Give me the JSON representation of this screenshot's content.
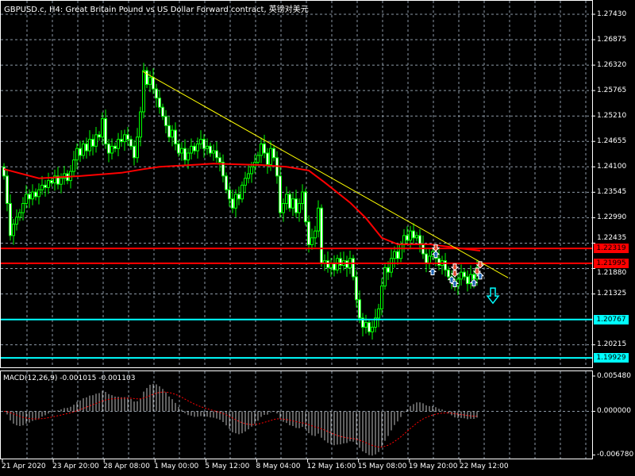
{
  "window": {
    "title": "GBPUSD.c, H4:  Great Britain Pound vs US Dollar Forward contract, 英镑对美元"
  },
  "colors": {
    "background": "#000000",
    "bull_candle": "#00ff00",
    "grid": "#8d99a6",
    "moving_average": "#ff0000",
    "trend_line": "#ffff00",
    "support_lines": "#00ffff",
    "resistance_lines": "#ff0000",
    "macd_histogram": "#c0c0c0",
    "macd_signal": "#ff0000",
    "buy_arrow": "#1e64b4",
    "sell_arrow": "#e0462a"
  },
  "chart_data": {
    "type": "candlestick",
    "symbol": "GBPUSD.c",
    "timeframe": "H4",
    "price_axis": {
      "ticks": [
        "1.27430",
        "1.26875",
        "1.26320",
        "1.25765",
        "1.25210",
        "1.24655",
        "1.24100",
        "1.23545",
        "1.22990",
        "1.22435",
        "1.21880",
        "1.21325",
        "1.20215"
      ],
      "range": [
        1.1975,
        1.2775
      ]
    },
    "time_axis": {
      "ticks": [
        "21 Apr 2020",
        "23 Apr 20:00",
        "28 Apr 08:00",
        "1 May 00:00",
        "5 May 12:00",
        "8 May 04:00",
        "12 May 16:00",
        "15 May 08:00",
        "19 May 20:00",
        "22 May 12:00"
      ]
    },
    "closes": [
      1.239,
      1.233,
      1.226,
      1.2285,
      1.23,
      1.231,
      1.233,
      1.235,
      1.234,
      1.2355,
      1.2345,
      1.236,
      1.237,
      1.2365,
      1.238,
      1.2375,
      1.239,
      1.2372,
      1.2385,
      1.2395,
      1.238,
      1.24,
      1.2425,
      1.245,
      1.2435,
      1.246,
      1.2445,
      1.247,
      1.2455,
      1.248,
      1.2475,
      1.2515,
      1.246,
      1.244,
      1.2455,
      1.245,
      1.247,
      1.2465,
      1.248,
      1.247,
      1.2455,
      1.243,
      1.2475,
      1.253,
      1.262,
      1.259,
      1.2605,
      1.258,
      1.256,
      1.254,
      1.252,
      1.25,
      1.2475,
      1.249,
      1.246,
      1.244,
      1.245,
      1.2425,
      1.244,
      1.2455,
      1.2445,
      1.246,
      1.247,
      1.245,
      1.2455,
      1.244,
      1.2445,
      1.243,
      1.242,
      1.239,
      1.236,
      1.234,
      1.232,
      1.235,
      1.234,
      1.237,
      1.2385,
      1.2395,
      1.241,
      1.242,
      1.2435,
      1.246,
      1.244,
      1.2415,
      1.245,
      1.243,
      1.239,
      1.231,
      1.233,
      1.235,
      1.232,
      1.234,
      1.231,
      1.233,
      1.2355,
      1.229,
      1.224,
      1.2255,
      1.227,
      1.232,
      1.22,
      1.2205,
      1.219,
      1.22,
      1.2185,
      1.221,
      1.2195,
      1.2205,
      1.219,
      1.221,
      1.217,
      1.212,
      1.208,
      1.206,
      1.207,
      1.205,
      1.206,
      1.208,
      1.21,
      1.215,
      1.219,
      1.218,
      1.221,
      1.2225,
      1.221,
      1.224,
      1.226,
      1.225,
      1.227,
      1.2255,
      1.226,
      1.224,
      1.222,
      1.22,
      1.2215,
      1.2225,
      1.221,
      1.2195,
      1.2205,
      1.2185,
      1.217,
      1.216,
      1.215,
      1.2165,
      1.218,
      1.217,
      1.2155,
      1.2175,
      1.2165,
      1.219
    ],
    "moving_average": [
      [
        0,
        1.2405
      ],
      [
        11,
        1.2385
      ],
      [
        24,
        1.239
      ],
      [
        37,
        1.2397
      ],
      [
        44,
        1.2405
      ],
      [
        49,
        1.241
      ],
      [
        66,
        1.2417
      ],
      [
        81,
        1.2414
      ],
      [
        89,
        1.241
      ],
      [
        96,
        1.2402
      ],
      [
        101,
        1.2376
      ],
      [
        109,
        1.2332
      ],
      [
        114,
        1.2298
      ],
      [
        119,
        1.2255
      ],
      [
        124,
        1.2241
      ],
      [
        134,
        1.2241
      ],
      [
        144,
        1.2232
      ],
      [
        150,
        1.2227
      ]
    ],
    "trend_line": [
      [
        43.75,
        1.2618
      ],
      [
        158.75,
        1.2168
      ]
    ],
    "horizontal_lines": [
      {
        "price": "1.22319",
        "color": "#ff0000"
      },
      {
        "price": "1.21995",
        "color": "#ff0000"
      },
      {
        "price": "1.20767",
        "color": "#00ffff"
      },
      {
        "price": "1.19929",
        "color": "#00ffff"
      }
    ],
    "sell_arrows": [
      [
        136,
        1.2233
      ],
      [
        142,
        1.2191
      ],
      [
        142,
        1.2177
      ],
      [
        150,
        1.2196
      ],
      [
        149,
        1.2182
      ]
    ],
    "buy_arrows": [
      [
        136,
        1.2219
      ],
      [
        135,
        1.2181
      ],
      [
        141,
        1.2164
      ],
      [
        142,
        1.2155
      ],
      [
        148,
        1.2157
      ],
      [
        150,
        1.2172
      ]
    ],
    "signal_arrow": {
      "bar": 154,
      "price": 1.2128,
      "direction": "down"
    },
    "macd": {
      "label": "MACD(12,26,9) -0.001015 -0.001103",
      "params": [
        12,
        26,
        9
      ],
      "ticks": [
        "0.005480",
        "0.000000",
        "-0.006780"
      ],
      "range": [
        -0.00678,
        0.00548
      ]
    }
  }
}
